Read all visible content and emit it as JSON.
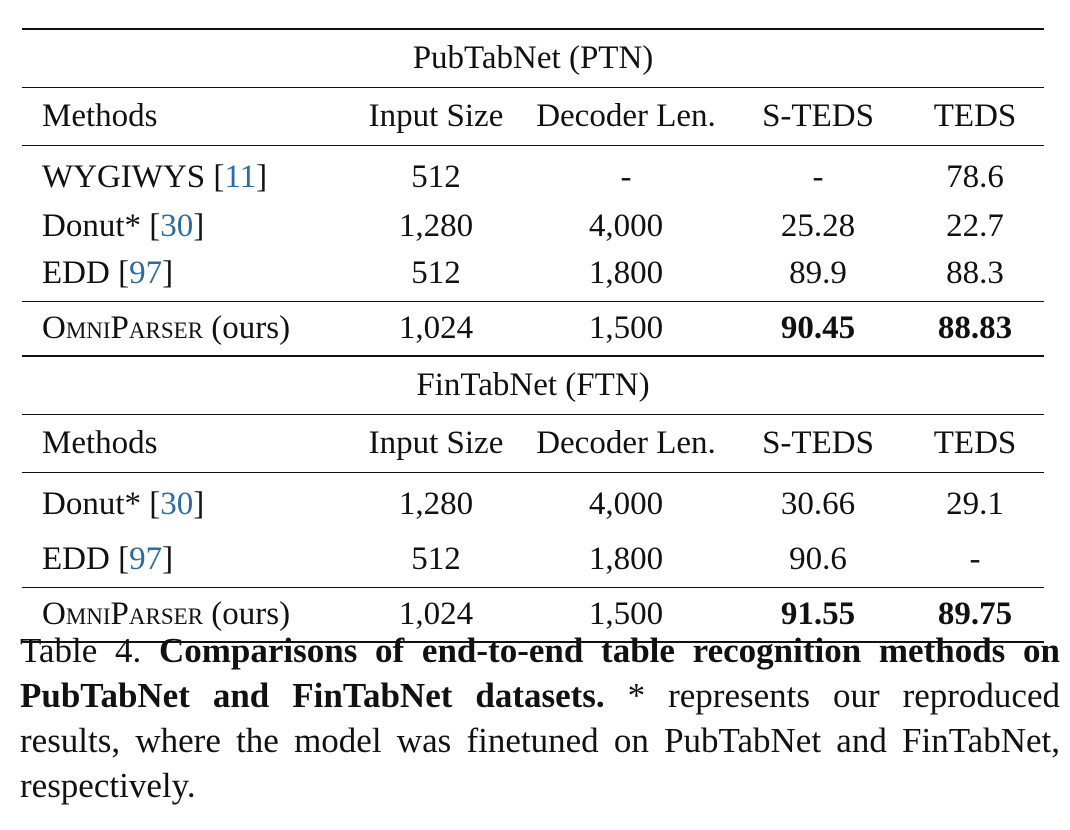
{
  "table": {
    "columns": [
      "Methods",
      "Input Size",
      "Decoder Len.",
      "S-TEDS",
      "TEDS"
    ],
    "sections": [
      {
        "title": "PubTabNet (PTN)",
        "rows": [
          {
            "method": "WYGIWYS [",
            "ref": "11",
            "close": "]",
            "input": "512",
            "decoder": "-",
            "steds": "-",
            "teds": "78.6"
          },
          {
            "method": "Donut* [",
            "ref": "30",
            "close": "]",
            "input": "1,280",
            "decoder": "4,000",
            "steds": "25.28",
            "teds": "22.7"
          },
          {
            "method": "EDD [",
            "ref": "97",
            "close": "]",
            "input": "512",
            "decoder": "1,800",
            "steds": "89.9",
            "teds": "88.3"
          }
        ],
        "ours": {
          "method": "OmniParser",
          "suffix": " (ours)",
          "input": "1,024",
          "decoder": "1,500",
          "steds": "90.45",
          "teds": "88.83"
        }
      },
      {
        "title": "FinTabNet (FTN)",
        "rows": [
          {
            "method": "Donut* [",
            "ref": "30",
            "close": "]",
            "input": "1,280",
            "decoder": "4,000",
            "steds": "30.66",
            "teds": "29.1"
          },
          {
            "method": "EDD [",
            "ref": "97",
            "close": "]",
            "input": "512",
            "decoder": "1,800",
            "steds": "90.6",
            "teds": "-"
          }
        ],
        "ours": {
          "method": "OmniParser",
          "suffix": " (ours)",
          "input": "1,024",
          "decoder": "1,500",
          "steds": "91.55",
          "teds": "89.75"
        }
      }
    ]
  },
  "caption": {
    "label": "Table 4.",
    "title": "Comparisons of end-to-end table recognition methods on PubTabNet and FinTabNet datasets.",
    "body": "* represents our reproduced results, where the model was finetuned on PubTabNet and FinTabNet, respectively."
  },
  "colors": {
    "ref_link": "#2b6ca8",
    "text": "#111111"
  }
}
